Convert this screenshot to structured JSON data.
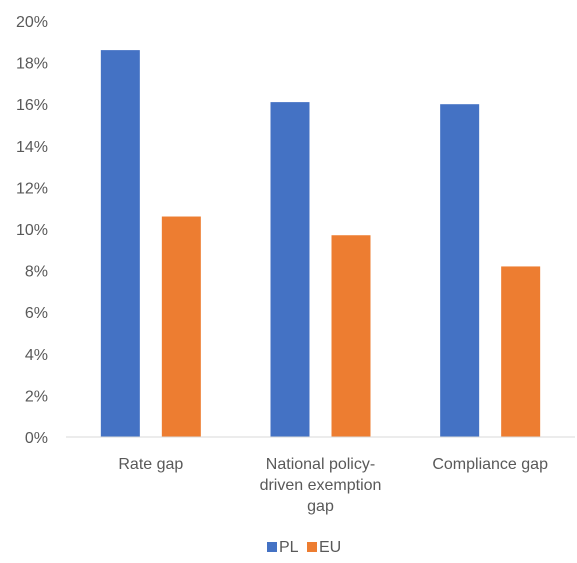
{
  "chart_data": {
    "type": "bar",
    "categories": [
      [
        "Rate gap"
      ],
      [
        "National policy-",
        "driven exemption",
        "gap"
      ],
      [
        "Compliance gap"
      ]
    ],
    "series": [
      {
        "name": "PL",
        "values": [
          18.6,
          16.1,
          16.0
        ],
        "color": "#4472C4"
      },
      {
        "name": "EU",
        "values": [
          10.6,
          9.7,
          8.2
        ],
        "color": "#ED7D31"
      }
    ],
    "ylim": [
      0,
      20
    ],
    "yticks": [
      "0%",
      "2%",
      "4%",
      "6%",
      "8%",
      "10%",
      "12%",
      "14%",
      "16%",
      "18%",
      "20%"
    ],
    "grid": false,
    "legend_position": "bottom",
    "title": "",
    "xlabel": "",
    "ylabel": ""
  }
}
